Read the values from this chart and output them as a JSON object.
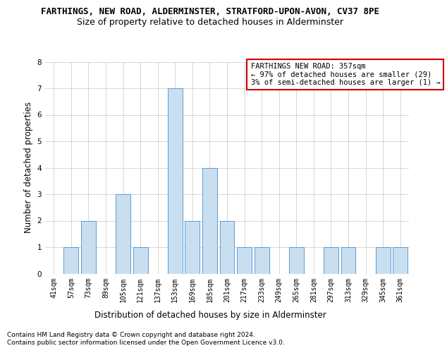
{
  "title": "FARTHINGS, NEW ROAD, ALDERMINSTER, STRATFORD-UPON-AVON, CV37 8PE",
  "subtitle": "Size of property relative to detached houses in Alderminster",
  "xlabel": "Distribution of detached houses by size in Alderminster",
  "ylabel": "Number of detached properties",
  "categories": [
    "41sqm",
    "57sqm",
    "73sqm",
    "89sqm",
    "105sqm",
    "121sqm",
    "137sqm",
    "153sqm",
    "169sqm",
    "185sqm",
    "201sqm",
    "217sqm",
    "233sqm",
    "249sqm",
    "265sqm",
    "281sqm",
    "297sqm",
    "313sqm",
    "329sqm",
    "345sqm",
    "361sqm"
  ],
  "values": [
    0,
    1,
    2,
    0,
    3,
    1,
    0,
    7,
    2,
    4,
    2,
    1,
    1,
    0,
    1,
    0,
    1,
    1,
    0,
    1,
    1
  ],
  "bar_color": "#c9dff0",
  "bar_edge_color": "#5b9bd5",
  "annotation_text": "FARTHINGS NEW ROAD: 357sqm\n← 97% of detached houses are smaller (29)\n3% of semi-detached houses are larger (1) →",
  "annotation_box_color": "#ffffff",
  "annotation_box_edge_color": "#cc0000",
  "ylim": [
    0,
    8
  ],
  "yticks": [
    0,
    1,
    2,
    3,
    4,
    5,
    6,
    7,
    8
  ],
  "footer1": "Contains HM Land Registry data © Crown copyright and database right 2024.",
  "footer2": "Contains public sector information licensed under the Open Government Licence v3.0.",
  "bg_color": "#ffffff",
  "grid_color": "#d0d0d0",
  "title_fontsize": 9,
  "subtitle_fontsize": 9,
  "axis_label_fontsize": 8.5,
  "tick_fontsize": 7,
  "annotation_fontsize": 7.5,
  "footer_fontsize": 6.5
}
